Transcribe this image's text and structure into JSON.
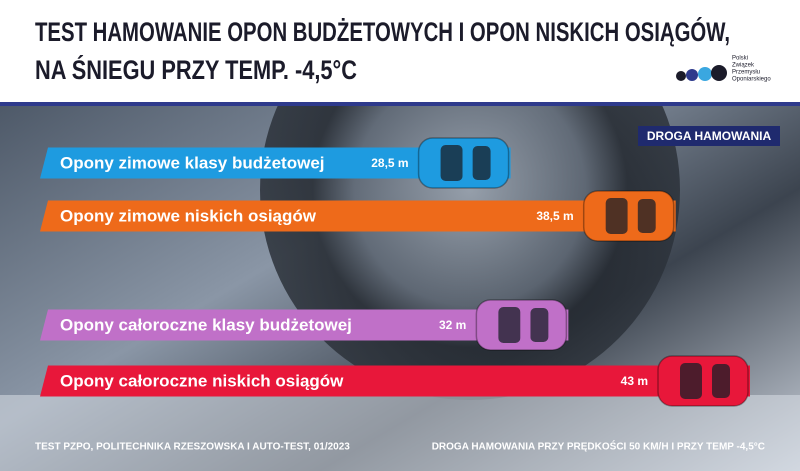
{
  "chart_data": {
    "type": "bar",
    "orientation": "horizontal",
    "title": [
      "TEST HAMOWANIE OPON BUDŻETOWYCH I OPON NISKICH OSIĄGÓW,",
      "NA ŚNIEGU PRZY TEMP. -4,5°C"
    ],
    "logo": [
      "Polski",
      "Związek",
      "Przemysłu",
      "Oponiarskiego"
    ],
    "badge": "DROGA HAMOWANIA",
    "categories": [
      "Opony zimowe klasy budżetowej",
      "Opony zimowe niskich osiągów",
      "Opony całoroczne klasy budżetowej",
      "Opony całoroczne niskich osiągów"
    ],
    "values": [
      28.5,
      38.5,
      32,
      43
    ],
    "value_labels": [
      "28,5 m",
      "38,5 m",
      "32 m",
      "43 m"
    ],
    "colors": [
      "#1e9be0",
      "#ee6a1a",
      "#c070c8",
      "#e8173a"
    ],
    "footer_left": "TEST PZPO, POLITECHNIKA RZESZOWSKA I AUTO-TEST, 01/2023",
    "footer_right": "DROGA HAMOWANIA PRZY PRĘDKOŚCI 50 KM/H I PRZY TEMP -4,5°C"
  }
}
